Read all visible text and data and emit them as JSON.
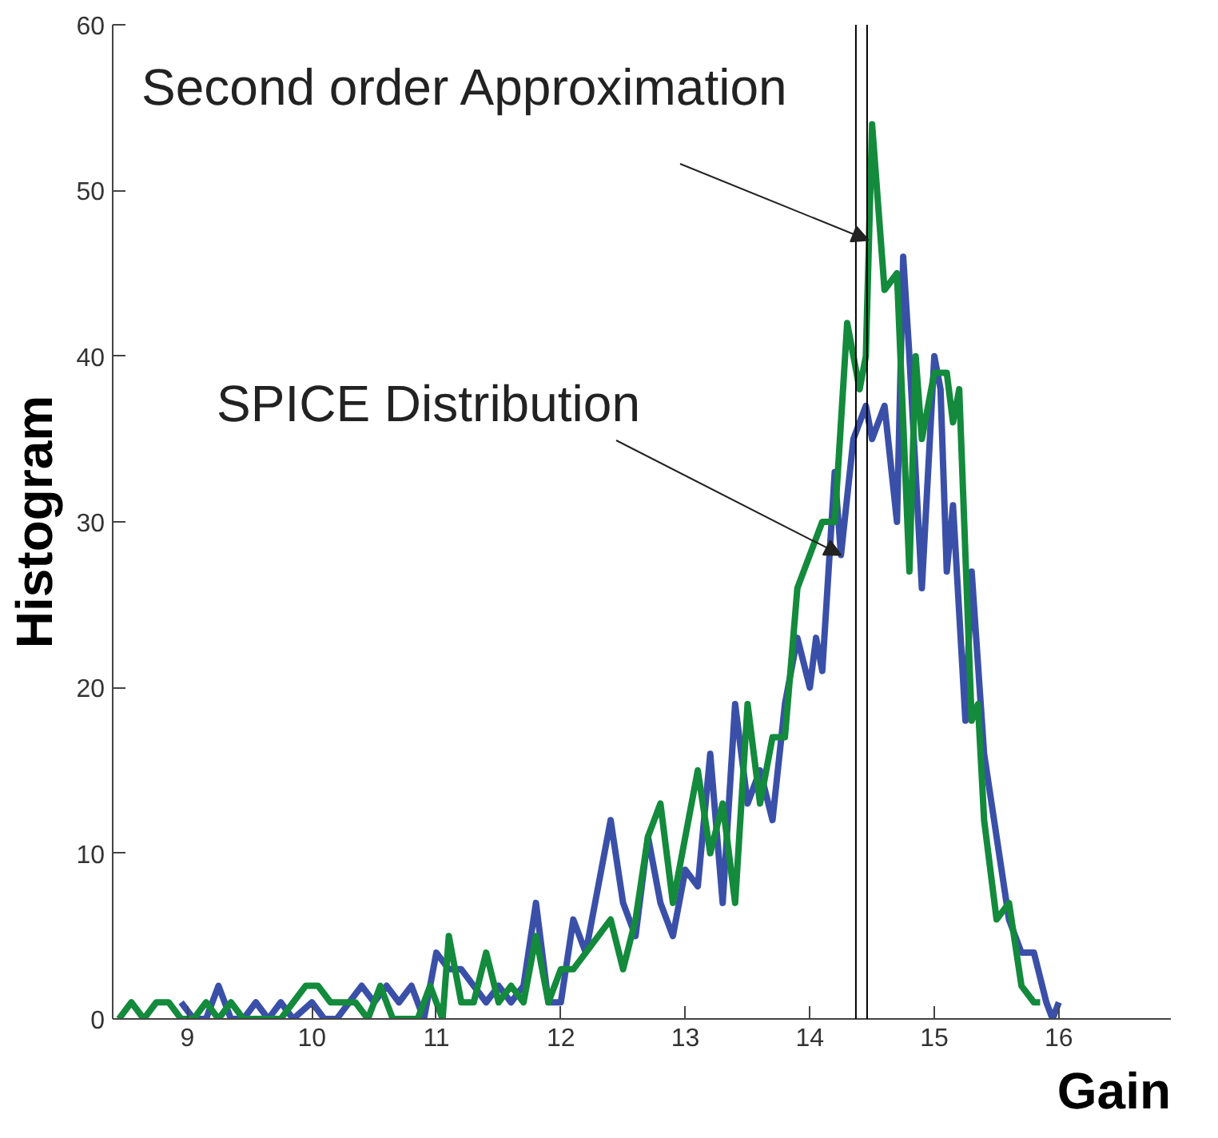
{
  "chart_data": {
    "type": "line",
    "xlabel": "Gain",
    "ylabel": "Histogram",
    "xlim": [
      8.4,
      16.9
    ],
    "ylim": [
      0,
      60
    ],
    "xticks": [
      9,
      10,
      11,
      12,
      13,
      14,
      15,
      16
    ],
    "yticks": [
      0,
      10,
      20,
      30,
      40,
      50,
      60
    ],
    "grid": false,
    "marker": "none",
    "line_style": "solid",
    "series": [
      {
        "color": "#3a50a8",
        "x": [
          8.95,
          9.05,
          9.15,
          9.25,
          9.35,
          9.45,
          9.55,
          9.65,
          9.75,
          9.85,
          10.0,
          10.1,
          10.2,
          10.3,
          10.4,
          10.5,
          10.6,
          10.7,
          10.8,
          10.9,
          11.0,
          11.1,
          11.2,
          11.3,
          11.4,
          11.5,
          11.6,
          11.7,
          11.8,
          11.9,
          12.0,
          12.1,
          12.2,
          12.3,
          12.4,
          12.5,
          12.6,
          12.7,
          12.8,
          12.9,
          13.0,
          13.1,
          13.2,
          13.3,
          13.4,
          13.5,
          13.6,
          13.7,
          13.8,
          13.9,
          14.0,
          14.05,
          14.1,
          14.2,
          14.25,
          14.35,
          14.45,
          14.5,
          14.6,
          14.7,
          14.75,
          14.8,
          14.9,
          15.0,
          15.05,
          15.1,
          15.15,
          15.25,
          15.3,
          15.4,
          15.5,
          15.6,
          15.7,
          15.8,
          15.9,
          15.95,
          16.0
        ],
        "values": [
          1,
          0,
          0,
          2,
          0,
          0,
          1,
          0,
          1,
          0,
          1,
          0,
          0,
          1,
          2,
          1,
          2,
          1,
          2,
          0,
          4,
          3,
          3,
          2,
          1,
          2,
          1,
          2,
          7,
          1,
          1,
          6,
          4,
          8,
          12,
          7,
          5,
          11,
          7,
          5,
          9,
          8,
          16,
          7,
          19,
          13,
          15,
          12,
          19,
          23,
          20,
          23,
          21,
          33,
          28,
          35,
          37,
          35,
          37,
          30,
          46,
          40,
          26,
          40,
          38,
          27,
          31,
          18,
          27,
          16,
          11,
          6,
          4,
          4,
          1,
          0,
          1
        ]
      },
      {
        "color": "#138a3c",
        "x": [
          8.45,
          8.55,
          8.65,
          8.75,
          8.85,
          8.95,
          9.05,
          9.15,
          9.25,
          9.35,
          9.45,
          9.55,
          9.65,
          9.75,
          9.85,
          9.95,
          10.05,
          10.15,
          10.25,
          10.35,
          10.45,
          10.55,
          10.65,
          10.75,
          10.85,
          10.95,
          11.05,
          11.1,
          11.2,
          11.3,
          11.4,
          11.5,
          11.6,
          11.7,
          11.8,
          11.9,
          12.0,
          12.1,
          12.2,
          12.3,
          12.4,
          12.5,
          12.6,
          12.7,
          12.8,
          12.9,
          13.0,
          13.1,
          13.2,
          13.3,
          13.4,
          13.5,
          13.6,
          13.7,
          13.8,
          13.9,
          14.0,
          14.1,
          14.2,
          14.3,
          14.4,
          14.45,
          14.5,
          14.6,
          14.7,
          14.8,
          14.85,
          14.9,
          15.0,
          15.1,
          15.15,
          15.2,
          15.3,
          15.35,
          15.4,
          15.5,
          15.6,
          15.7,
          15.8,
          15.85
        ],
        "values": [
          0,
          1,
          0,
          1,
          1,
          0,
          0,
          1,
          0,
          1,
          0,
          0,
          0,
          0,
          1,
          2,
          2,
          1,
          1,
          1,
          0,
          2,
          0,
          0,
          0,
          2,
          0,
          5,
          1,
          1,
          4,
          1,
          2,
          1,
          5,
          1,
          3,
          3,
          4,
          5,
          6,
          3,
          6,
          11,
          13,
          7,
          11,
          15,
          10,
          13,
          7,
          19,
          13,
          17,
          17,
          26,
          28,
          30,
          30,
          42,
          38,
          40,
          54,
          44,
          45,
          27,
          40,
          35,
          39,
          39,
          36,
          38,
          18,
          19,
          12,
          6,
          7,
          2,
          1,
          1
        ]
      }
    ],
    "ref_lines": [
      {
        "axis": "x",
        "value": 14.37,
        "color": "#000000"
      },
      {
        "axis": "x",
        "value": 14.46,
        "color": "#000000"
      }
    ],
    "annotations": [
      {
        "text": "Second order Approximation",
        "x": 14.47,
        "y": 47
      },
      {
        "text": "SPICE Distribution",
        "x": 14.25,
        "y": 28
      }
    ]
  }
}
